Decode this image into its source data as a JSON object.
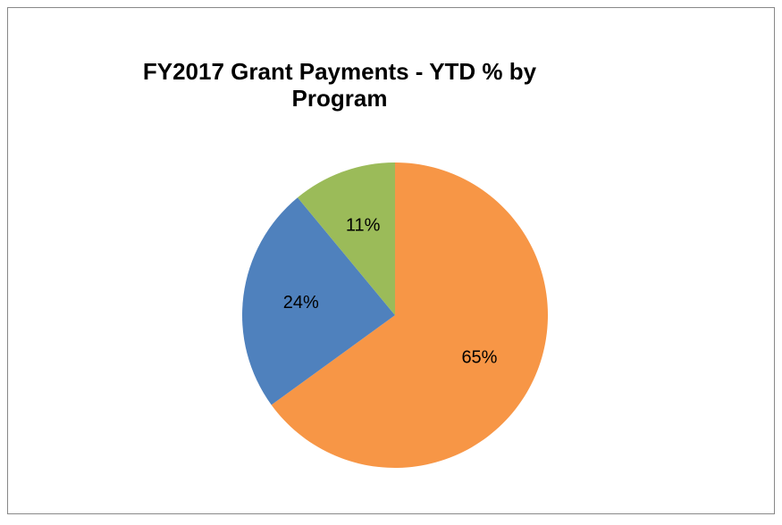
{
  "chart_data": {
    "type": "pie",
    "title": [
      "FY2017 Grant Payments -  YTD % by",
      "Program"
    ],
    "values": [
      65,
      24,
      11
    ],
    "value_labels": [
      "65%",
      "24%",
      "11%"
    ],
    "colors": [
      "#f79646",
      "#4f81bd",
      "#9bbb59"
    ]
  }
}
